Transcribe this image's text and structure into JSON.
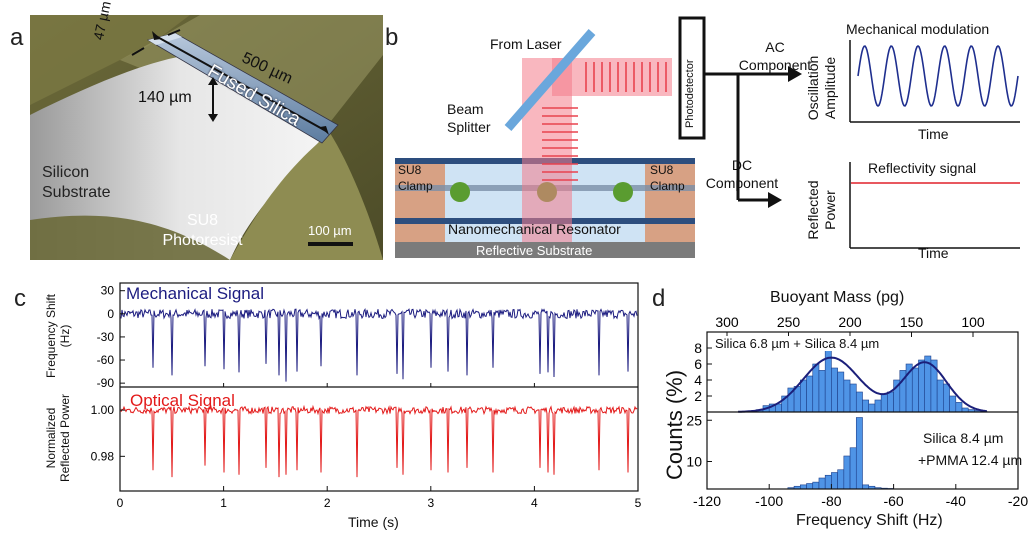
{
  "panels": {
    "a": {
      "label": "a",
      "width_label": "47 µm",
      "length_label": "500 µm",
      "height_label": "140 µm",
      "beam_label": "Fused Silica",
      "substrate_label": "Silicon Substrate",
      "photoresist_label": "SU8 Photoresist",
      "scale_label": "100 µm"
    },
    "b": {
      "label": "b",
      "from_laser": "From Laser",
      "beam_splitter": "Beam Splitter",
      "photodetector": "Photodetector",
      "ac_component": "AC Component",
      "dc_component": "DC Component",
      "clamp_left": "SU8 Clamp",
      "clamp_right": "SU8 Clamp",
      "resonator": "Nanomechanical Resonator",
      "reflective_substrate": "Reflective Substrate",
      "plot_top_title": "Mechanical modulation",
      "plot_top_ylabel": "Oscillation Amplitude",
      "plot_top_xlabel": "Time",
      "plot_bottom_title": "Reflectivity signal",
      "plot_bottom_ylabel": "Reflected Power",
      "plot_bottom_xlabel": "Time",
      "colors": {
        "laser": "#f47c8a",
        "splitter": "#6aa7dc",
        "clamp": "#d7a184",
        "beam": "#2d4e7e",
        "trace_blue": "#1f2f8f",
        "trace_red": "#e0202a"
      }
    },
    "c": {
      "label": "c",
      "top_series": "Mechanical Signal",
      "bottom_series": "Optical Signal",
      "top_ylabel": "Frequency Shift (Hz)",
      "bottom_ylabel": "Normalized Reflected Power",
      "xlabel": "Time (s)",
      "colors": {
        "mechanical": "#1c1c80",
        "optical": "#e31a1a"
      }
    },
    "d": {
      "label": "d",
      "top_axis_label": "Buoyant Mass (pg)",
      "xlabel": "Frequency Shift (Hz)",
      "ylabel": "Counts (%)",
      "top_annotation": "Silica 6.8 µm + Silica 8.4 µm",
      "bottom_annotation_1": "Silica 8.4 µm",
      "bottom_annotation_2": "+PMMA 12.4 µm",
      "colors": {
        "bar": "#4f94e6",
        "bar_edge": "#1d3f8a",
        "fit": "#1b1f7a"
      }
    }
  },
  "chart_data": [
    {
      "type": "line",
      "title": "",
      "series": [
        {
          "name": "Mechanical Signal",
          "baseline": 0,
          "noise_amplitude": 6,
          "dip_times_s": [
            0.32,
            0.5,
            0.82,
            1.0,
            1.15,
            1.41,
            1.53,
            1.6,
            1.71,
            1.94,
            2.29,
            2.67,
            2.73,
            3.0,
            3.17,
            3.35,
            3.6,
            4.05,
            4.13,
            4.19,
            4.62,
            4.9
          ],
          "dip_depths_hz": [
            -70,
            -80,
            -68,
            -72,
            -76,
            -65,
            -80,
            -88,
            -75,
            -68,
            -80,
            -78,
            -85,
            -70,
            -75,
            -80,
            -70,
            -78,
            -76,
            -82,
            -80,
            -75
          ]
        }
      ],
      "xlabel": "Time (s)",
      "ylabel": "Frequency Shift (Hz)",
      "xlim": [
        0,
        5
      ],
      "ylim": [
        -95,
        40
      ],
      "y_ticks": [
        30,
        0,
        -30,
        -60,
        -90
      ],
      "x_ticks": [
        0,
        1,
        2,
        3,
        4,
        5
      ]
    },
    {
      "type": "line",
      "title": "",
      "series": [
        {
          "name": "Optical Signal",
          "baseline": 1.0,
          "noise_amplitude": 0.0015,
          "dip_times_s": [
            0.32,
            0.5,
            0.82,
            1.0,
            1.15,
            1.41,
            1.53,
            1.6,
            1.71,
            1.94,
            2.29,
            2.67,
            2.73,
            3.0,
            3.17,
            3.35,
            3.6,
            4.05,
            4.13,
            4.19,
            4.62,
            4.9
          ],
          "dip_depths": [
            0.974,
            0.971,
            0.976,
            0.973,
            0.972,
            0.975,
            0.971,
            0.972,
            0.974,
            0.973,
            0.971,
            0.975,
            0.972,
            0.974,
            0.973,
            0.975,
            0.973,
            0.975,
            0.973,
            0.972,
            0.974,
            0.973
          ]
        }
      ],
      "xlabel": "Time (s)",
      "ylabel": "Normalized Reflected Power",
      "xlim": [
        0,
        5
      ],
      "ylim": [
        0.965,
        1.01
      ],
      "y_ticks": [
        1.0,
        0.98
      ],
      "x_ticks": [
        0,
        1,
        2,
        3,
        4,
        5
      ]
    },
    {
      "type": "bar",
      "title": "",
      "series": [
        {
          "name": "Silica 6.8 µm + Silica 8.4 µm",
          "bin_start_hz": [
            -104,
            -102,
            -100,
            -98,
            -96,
            -94,
            -92,
            -90,
            -88,
            -86,
            -84,
            -82,
            -80,
            -78,
            -76,
            -74,
            -72,
            -70,
            -68,
            -66,
            -64,
            -62,
            -60,
            -58,
            -56,
            -54,
            -52,
            -50,
            -48,
            -46,
            -44,
            -42,
            -40,
            -38,
            -36,
            -34,
            -32
          ],
          "values": [
            0.3,
            0.8,
            1,
            1,
            2,
            3,
            3.2,
            4,
            4.5,
            6,
            5.2,
            8,
            5.5,
            5,
            4,
            3.5,
            2.5,
            1.5,
            1,
            1.5,
            2.2,
            2.5,
            4,
            5.2,
            6,
            5.5,
            6.5,
            7,
            6.5,
            4,
            3.5,
            2,
            1.2,
            0.5,
            0.3,
            0.2,
            0.1
          ]
        }
      ],
      "fit": "two-gaussian",
      "xlim": [
        -120,
        -20
      ],
      "ylim": [
        0,
        10
      ],
      "y_ticks": [
        0,
        2,
        4,
        6,
        8
      ],
      "top_axis_ticks_pg": [
        300,
        250,
        200,
        150,
        100
      ],
      "top_axis_label": "Buoyant Mass (pg)"
    },
    {
      "type": "bar",
      "title": "",
      "series": [
        {
          "name": "Silica 8.4 µm +PMMA 12.4 µm",
          "bin_start_hz": [
            -94,
            -92,
            -90,
            -88,
            -86,
            -84,
            -82,
            -80,
            -78,
            -76,
            -74,
            -72,
            -70,
            -68,
            -66,
            -64,
            -62
          ],
          "values": [
            0.5,
            1,
            1.5,
            2,
            2.5,
            4,
            5,
            6,
            7,
            12,
            15,
            26,
            1.5,
            1,
            0.5,
            0.3,
            0.2
          ]
        }
      ],
      "xlabel": "Frequency Shift (Hz)",
      "xlim": [
        -120,
        -20
      ],
      "ylim": [
        0,
        28
      ],
      "y_ticks": [
        0,
        10,
        25
      ],
      "x_ticks": [
        -120,
        -100,
        -80,
        -60,
        -40,
        -20
      ]
    }
  ]
}
